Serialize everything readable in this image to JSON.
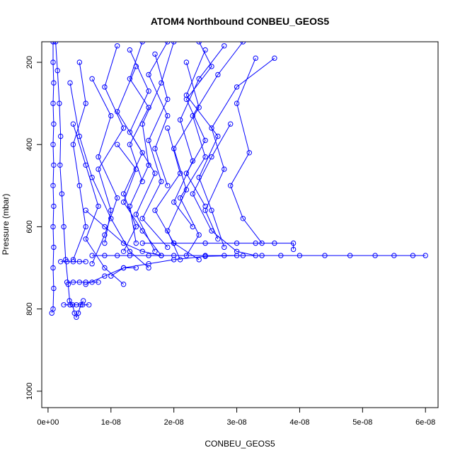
{
  "chart_data": {
    "type": "scatter",
    "title": "ATOM4 Northbound CONBEU_GEOS5",
    "xlabel": "CONBEU_GEOS5",
    "ylabel": "Pressure (mbar)",
    "xlim": [
      -1e-09,
      6.2e-08
    ],
    "ylim": [
      1040,
      150
    ],
    "y_reversed": true,
    "x_ticks": [
      0,
      1e-08,
      2e-08,
      3e-08,
      4e-08,
      5e-08,
      6e-08
    ],
    "x_tick_labels": [
      "0e+00",
      "1e-08",
      "2e-08",
      "3e-08",
      "4e-08",
      "5e-08",
      "6e-08"
    ],
    "y_ticks": [
      200,
      400,
      600,
      800,
      1000
    ],
    "y_tick_labels": [
      "200",
      "400",
      "600",
      "800",
      "1000"
    ],
    "grid": false,
    "legend": "none",
    "marker": "open-circle",
    "line": "connected",
    "color": "#0000ff",
    "series": [
      {
        "values": [
          [
            8e-10,
            150
          ],
          [
            8e-10,
            200
          ],
          [
            9e-10,
            250
          ],
          [
            8e-10,
            300
          ],
          [
            9e-10,
            350
          ],
          [
            8e-10,
            400
          ],
          [
            9e-10,
            450
          ],
          [
            8e-10,
            500
          ],
          [
            9e-10,
            550
          ],
          [
            8e-10,
            600
          ],
          [
            9e-10,
            650
          ],
          [
            8e-10,
            700
          ],
          [
            9e-10,
            750
          ],
          [
            8e-10,
            800
          ],
          [
            6e-10,
            810
          ]
        ]
      },
      {
        "values": [
          [
            1.2e-09,
            150
          ],
          [
            1.5e-09,
            220
          ],
          [
            1.8e-09,
            300
          ],
          [
            2e-09,
            380
          ],
          [
            1.9e-09,
            450
          ],
          [
            2.2e-09,
            520
          ],
          [
            2.5e-09,
            600
          ],
          [
            2.8e-09,
            680
          ],
          [
            3.2e-09,
            740
          ],
          [
            3.5e-09,
            790
          ]
        ]
      },
      {
        "values": [
          [
            3.4e-09,
            780
          ],
          [
            3.9e-09,
            790
          ],
          [
            4.2e-09,
            810
          ],
          [
            4.5e-09,
            820
          ],
          [
            4.8e-09,
            810
          ],
          [
            5.2e-09,
            790
          ],
          [
            5.6e-09,
            780
          ]
        ]
      },
      {
        "values": [
          [
            2.5e-09,
            790
          ],
          [
            3.5e-09,
            790
          ],
          [
            4.5e-09,
            790
          ],
          [
            5.5e-09,
            790
          ],
          [
            6.5e-09,
            790
          ]
        ]
      },
      {
        "values": [
          [
            3e-09,
            735
          ],
          [
            4e-09,
            735
          ],
          [
            5e-09,
            735
          ],
          [
            6e-09,
            735
          ],
          [
            7e-09,
            735
          ],
          [
            8e-09,
            735
          ]
        ]
      },
      {
        "values": [
          [
            2e-09,
            685
          ],
          [
            3e-09,
            685
          ],
          [
            4e-09,
            685
          ],
          [
            5e-09,
            685
          ],
          [
            6e-09,
            685
          ]
        ]
      },
      {
        "values": [
          [
            7e-09,
            670
          ],
          [
            9e-09,
            670
          ],
          [
            1.1e-08,
            670
          ],
          [
            1.3e-08,
            670
          ],
          [
            1.6e-08,
            670
          ],
          [
            2e-08,
            670
          ],
          [
            2.5e-08,
            670
          ],
          [
            2.8e-08,
            670
          ],
          [
            3.1e-08,
            670
          ],
          [
            3.4e-08,
            670
          ],
          [
            3.7e-08,
            670
          ],
          [
            4e-08,
            670
          ],
          [
            4.4e-08,
            670
          ],
          [
            4.8e-08,
            670
          ],
          [
            5.2e-08,
            670
          ],
          [
            5.5e-08,
            670
          ],
          [
            5.8e-08,
            670
          ],
          [
            6e-08,
            670
          ]
        ]
      },
      {
        "values": [
          [
            1.5e-08,
            640
          ],
          [
            2e-08,
            640
          ],
          [
            2.5e-08,
            640
          ],
          [
            3e-08,
            640
          ],
          [
            3.3e-08,
            640
          ],
          [
            3.6e-08,
            640
          ],
          [
            3.9e-08,
            640
          ],
          [
            3.9e-08,
            655
          ]
        ]
      },
      {
        "values": [
          [
            6e-09,
            740
          ],
          [
            9e-09,
            720
          ],
          [
            1.2e-08,
            700
          ],
          [
            1.6e-08,
            690
          ],
          [
            2e-08,
            680
          ],
          [
            2.5e-08,
            672
          ],
          [
            3e-08,
            670
          ]
        ]
      },
      {
        "values": [
          [
            1e-08,
            720
          ],
          [
            1.2e-08,
            700
          ],
          [
            1.4e-08,
            700
          ]
        ]
      },
      {
        "values": [
          [
            2e-08,
            150
          ],
          [
            1.8e-08,
            250
          ],
          [
            1.5e-08,
            350
          ],
          [
            1.6e-08,
            450
          ],
          [
            1.3e-08,
            550
          ],
          [
            1.4e-08,
            640
          ]
        ]
      },
      {
        "values": [
          [
            3.1e-08,
            150
          ],
          [
            2.7e-08,
            230
          ],
          [
            2.3e-08,
            330
          ],
          [
            2.5e-08,
            430
          ],
          [
            2.1e-08,
            530
          ],
          [
            2.4e-08,
            620
          ],
          [
            2.2e-08,
            670
          ]
        ]
      },
      {
        "values": [
          [
            1.1e-08,
            160
          ],
          [
            9e-09,
            260
          ],
          [
            1.2e-08,
            360
          ],
          [
            8e-09,
            460
          ],
          [
            1e-08,
            560
          ],
          [
            9e-09,
            640
          ]
        ]
      },
      {
        "values": [
          [
            3.3e-08,
            190
          ],
          [
            3e-08,
            300
          ],
          [
            3.2e-08,
            420
          ],
          [
            2.9e-08,
            500
          ],
          [
            3.1e-08,
            580
          ],
          [
            3.4e-08,
            640
          ]
        ]
      },
      {
        "values": [
          [
            2.5e-08,
            170
          ],
          [
            2.2e-08,
            280
          ],
          [
            2.7e-08,
            380
          ],
          [
            2.4e-08,
            480
          ],
          [
            2.6e-08,
            560
          ],
          [
            2.8e-08,
            650
          ]
        ]
      },
      {
        "values": [
          [
            5e-09,
            200
          ],
          [
            6e-09,
            300
          ],
          [
            4e-09,
            400
          ],
          [
            5e-09,
            500
          ],
          [
            6e-09,
            600
          ],
          [
            4e-09,
            680
          ]
        ]
      },
      {
        "values": [
          [
            1.7e-08,
            180
          ],
          [
            1.9e-08,
            290
          ],
          [
            1.6e-08,
            390
          ],
          [
            1.8e-08,
            490
          ],
          [
            1.5e-08,
            580
          ],
          [
            1.9e-08,
            650
          ]
        ]
      },
      {
        "values": [
          [
            1.4e-08,
            210
          ],
          [
            1.1e-08,
            320
          ],
          [
            1.5e-08,
            420
          ],
          [
            1.2e-08,
            520
          ],
          [
            1.4e-08,
            600
          ],
          [
            1.2e-08,
            660
          ]
        ]
      },
      {
        "values": [
          [
            2.8e-08,
            160
          ],
          [
            2.4e-08,
            240
          ],
          [
            2.1e-08,
            340
          ],
          [
            2.3e-08,
            440
          ],
          [
            2e-08,
            540
          ],
          [
            2.3e-08,
            600
          ]
        ]
      },
      {
        "values": [
          [
            7e-09,
            240
          ],
          [
            1e-08,
            330
          ],
          [
            8e-09,
            430
          ],
          [
            1.1e-08,
            530
          ],
          [
            9e-09,
            620
          ],
          [
            7e-09,
            690
          ]
        ]
      },
      {
        "values": [
          [
            3.6e-08,
            190
          ],
          [
            3e-08,
            260
          ],
          [
            2.6e-08,
            360
          ],
          [
            2.8e-08,
            460
          ],
          [
            2.5e-08,
            560
          ],
          [
            2.7e-08,
            630
          ]
        ]
      },
      {
        "values": [
          [
            2.2e-08,
            200
          ],
          [
            2.4e-08,
            310
          ],
          [
            2e-08,
            410
          ],
          [
            2.2e-08,
            510
          ],
          [
            1.9e-08,
            610
          ],
          [
            2.1e-08,
            680
          ]
        ]
      },
      {
        "values": [
          [
            1.3e-08,
            170
          ],
          [
            1.6e-08,
            270
          ],
          [
            1.3e-08,
            370
          ],
          [
            1.7e-08,
            470
          ],
          [
            1.4e-08,
            570
          ],
          [
            1.7e-08,
            660
          ]
        ]
      },
      {
        "values": [
          [
            4e-09,
            350
          ],
          [
            6e-09,
            450
          ],
          [
            8e-09,
            550
          ],
          [
            6e-09,
            630
          ],
          [
            9e-09,
            700
          ],
          [
            1.2e-08,
            740
          ]
        ]
      },
      {
        "values": [
          [
            3.5e-09,
            250
          ],
          [
            5e-09,
            380
          ],
          [
            7e-09,
            480
          ],
          [
            1e-08,
            580
          ],
          [
            1.3e-08,
            660
          ],
          [
            1.6e-08,
            700
          ]
        ]
      },
      {
        "values": [
          [
            2.9e-08,
            350
          ],
          [
            2.6e-08,
            430
          ],
          [
            2.3e-08,
            520
          ],
          [
            2.6e-08,
            610
          ],
          [
            3e-08,
            660
          ],
          [
            3.3e-08,
            670
          ]
        ]
      },
      {
        "values": [
          [
            1.9e-08,
            360
          ],
          [
            2.1e-08,
            470
          ],
          [
            1.7e-08,
            560
          ],
          [
            2e-08,
            640
          ],
          [
            2.4e-08,
            680
          ]
        ]
      },
      {
        "values": [
          [
            2.4e-08,
            150
          ],
          [
            2.6e-08,
            210
          ],
          [
            2.2e-08,
            290
          ],
          [
            2.5e-08,
            390
          ],
          [
            2.2e-08,
            470
          ],
          [
            2.5e-08,
            550
          ]
        ]
      },
      {
        "values": [
          [
            1.9e-08,
            150
          ],
          [
            1.6e-08,
            230
          ],
          [
            1.9e-08,
            330
          ],
          [
            1.7e-08,
            410
          ],
          [
            1.9e-08,
            500
          ]
        ]
      },
      {
        "values": [
          [
            1.5e-08,
            150
          ],
          [
            1.3e-08,
            240
          ],
          [
            1.6e-08,
            310
          ],
          [
            1.3e-08,
            400
          ],
          [
            1.5e-08,
            490
          ]
        ]
      },
      {
        "values": [
          [
            1.1e-08,
            400
          ],
          [
            1.4e-08,
            460
          ],
          [
            1.2e-08,
            540
          ],
          [
            1.5e-08,
            610
          ],
          [
            1.8e-08,
            670
          ]
        ]
      },
      {
        "values": [
          [
            6e-09,
            560
          ],
          [
            9e-09,
            600
          ],
          [
            1.2e-08,
            640
          ],
          [
            1.5e-08,
            660
          ],
          [
            1.8e-08,
            670
          ]
        ]
      }
    ]
  }
}
